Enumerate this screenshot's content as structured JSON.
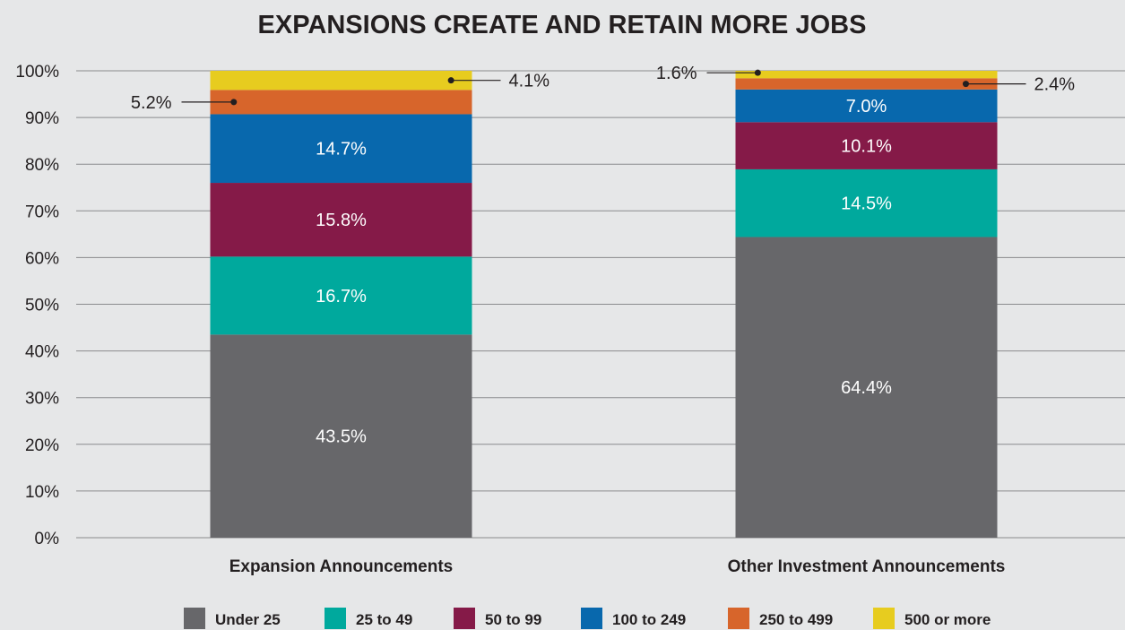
{
  "chart_data": {
    "type": "bar",
    "stacked": true,
    "title": "EXPANSIONS CREATE AND RETAIN MORE JOBS",
    "categories": [
      "Expansion Announcements",
      "Other Investment Announcements"
    ],
    "ylim": [
      0,
      100
    ],
    "y_ticks": [
      "0%",
      "10%",
      "20%",
      "30%",
      "40%",
      "50%",
      "60%",
      "70%",
      "80%",
      "90%",
      "100%"
    ],
    "grid": true,
    "legend_position": "bottom",
    "series": [
      {
        "name": "Under 25",
        "color": "#67676a",
        "values": [
          43.5,
          64.4
        ],
        "labels": [
          "43.5%",
          "64.4%"
        ]
      },
      {
        "name": "25 to 49",
        "color": "#00a99d",
        "values": [
          16.7,
          14.5
        ],
        "labels": [
          "16.7%",
          "14.5%"
        ]
      },
      {
        "name": "50 to 99",
        "color": "#851a48",
        "values": [
          15.8,
          10.1
        ],
        "labels": [
          "15.8%",
          "10.1%"
        ]
      },
      {
        "name": "100 to 249",
        "color": "#0868ad",
        "values": [
          14.7,
          7.0
        ],
        "labels": [
          "14.7%",
          "7.0%"
        ]
      },
      {
        "name": "250 to 499",
        "color": "#d7652b",
        "values": [
          5.2,
          2.4
        ],
        "labels": [
          "5.2%",
          "2.4%"
        ]
      },
      {
        "name": "500 or more",
        "color": "#e7cc1f",
        "values": [
          4.1,
          1.6
        ],
        "labels": [
          "4.1%",
          "1.6%"
        ]
      }
    ]
  }
}
